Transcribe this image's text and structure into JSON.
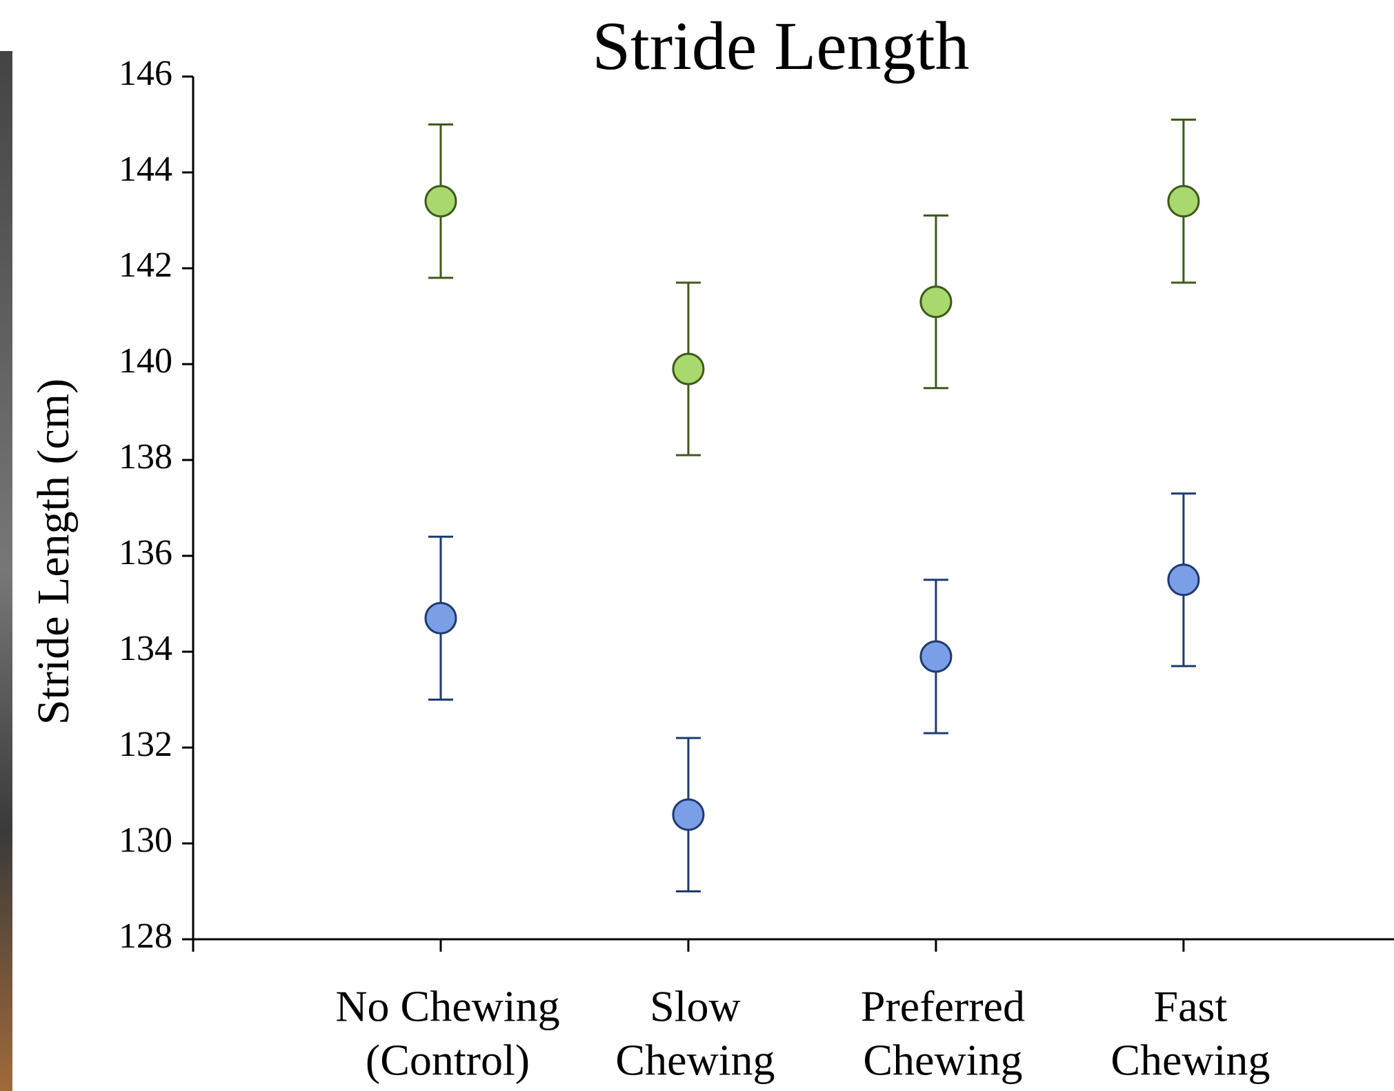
{
  "chart_data": {
    "type": "errorbar",
    "title": "Stride Length",
    "ylabel": "Stride Length (cm)",
    "categories": [
      [
        "No Chewing",
        "(Control)"
      ],
      [
        "Slow",
        "Chewing"
      ],
      [
        "Preferred",
        "Chewing"
      ],
      [
        "Fast",
        "Chewing"
      ]
    ],
    "series": [
      {
        "color": "#a9d86e",
        "edgecolor": "#3d5a1a",
        "values": [
          143.4,
          139.9,
          141.3,
          143.4
        ],
        "errors": [
          1.6,
          1.8,
          1.8,
          1.7
        ]
      },
      {
        "color": "#7b9fe6",
        "edgecolor": "#1f3a70",
        "values": [
          134.7,
          130.6,
          133.9,
          135.5
        ],
        "errors": [
          1.7,
          1.6,
          1.6,
          1.8
        ]
      }
    ],
    "ylim": [
      128,
      146
    ],
    "yticks": [
      128,
      130,
      132,
      134,
      136,
      138,
      140,
      142,
      144,
      146
    ]
  }
}
